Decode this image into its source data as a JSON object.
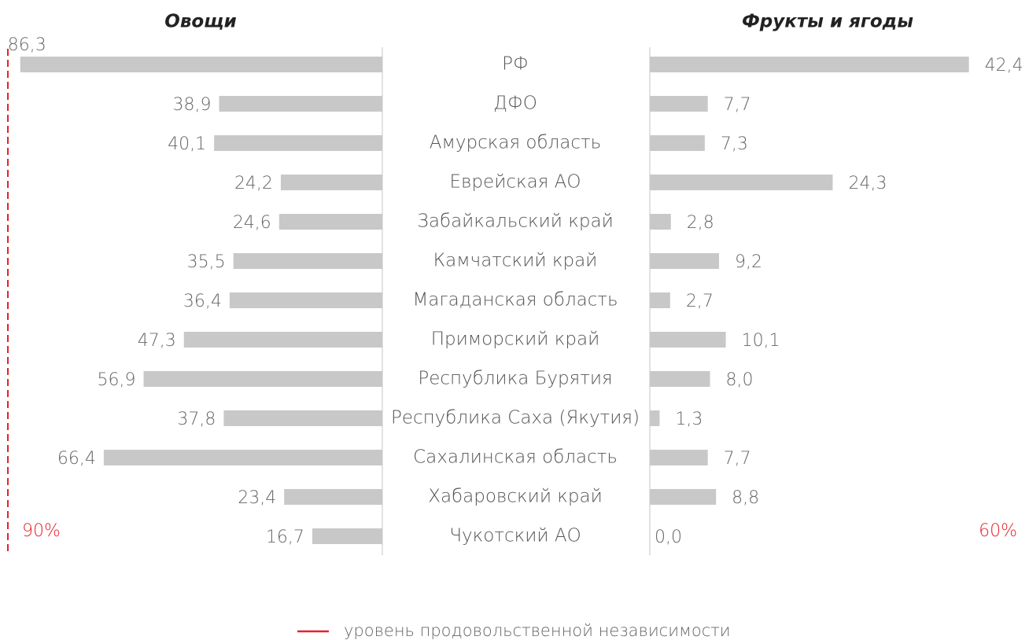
{
  "chart_data": {
    "type": "bar",
    "categories": [
      "РФ",
      "ДФО",
      "Амурская область",
      "Еврейская АО",
      "Забайкальский край",
      "Камчатский край",
      "Магаданская область",
      "Приморский край",
      "Республика Бурятия",
      "Республика Саха (Якутия)",
      "Сахалинская область",
      "Хабаровский край",
      "Чукотский АО"
    ],
    "series": [
      {
        "name": "Овощи",
        "color": "#c8c8c8",
        "xlim": [
          0,
          90
        ],
        "values": [
          86.3,
          38.9,
          40.1,
          24.2,
          24.6,
          35.5,
          36.4,
          47.3,
          56.9,
          37.8,
          66.4,
          23.4,
          16.7
        ],
        "value_labels": [
          "86,3",
          "38,9",
          "40,1",
          "24,2",
          "24,6",
          "35,5",
          "36,4",
          "47,3",
          "56,9",
          "37,8",
          "66,4",
          "23,4",
          "16,7"
        ]
      },
      {
        "name": "Фрукты и ягоды",
        "color": "#c8c8c8",
        "xlim": [
          0,
          60
        ],
        "values": [
          42.4,
          7.7,
          7.3,
          24.3,
          2.8,
          9.2,
          2.7,
          10.1,
          8.0,
          1.3,
          7.7,
          8.8,
          0.0
        ],
        "value_labels": [
          "42,4",
          "7,7",
          "7,3",
          "24,3",
          "2,8",
          "9,2",
          "2,7",
          "10,1",
          "8,0",
          "1,3",
          "7,7",
          "8,8",
          "0,0"
        ]
      }
    ],
    "thresholds": [
      {
        "value": 90,
        "label": "90%"
      },
      {
        "value": 60,
        "label": "60%"
      }
    ],
    "threshold_color": "#e8212a",
    "threshold_legend": "уровень продовольственной независимости"
  }
}
